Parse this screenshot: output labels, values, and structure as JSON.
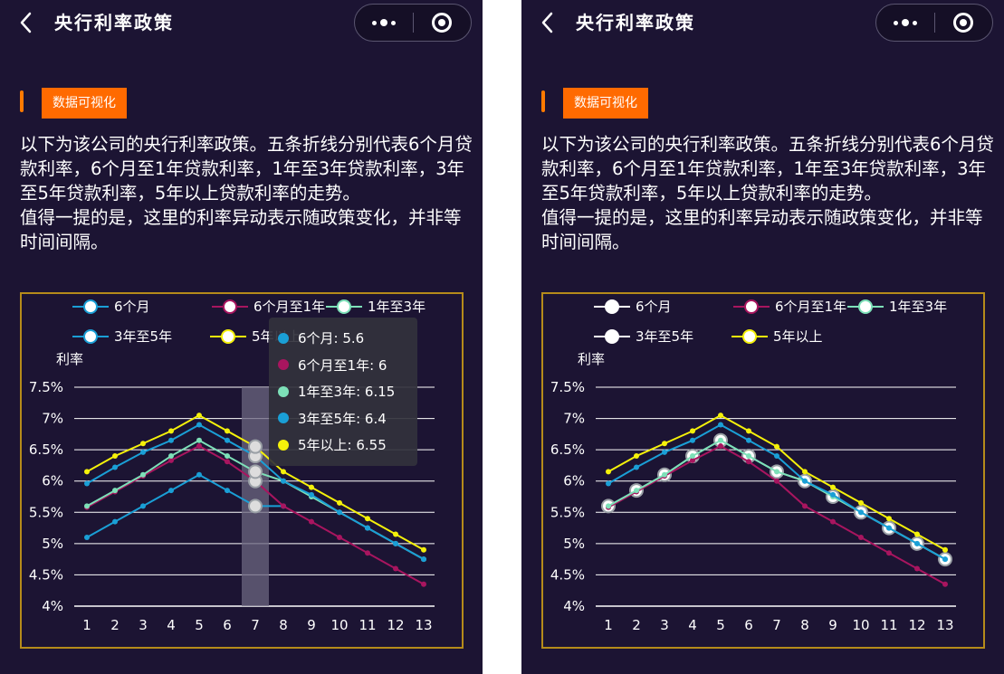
{
  "nav": {
    "title": "央行利率政策"
  },
  "tag_label": "数据可视化",
  "description": "以下为该公司的央行利率政策。五条折线分别代表6个月贷款利率，6个月至1年贷款利率，1年至3年贷款利率，3年至5年贷款利率，5年以上贷款利率的走势。\n值得一提的是，这里的利率异动表示随政策变化，并非等时间间隔。",
  "colors": {
    "background": "#1c1433",
    "accent": "#ff6a00",
    "chart_border": "#b58b1a",
    "tooltip_bg": "#32323c",
    "highlight_band": "#6b6680"
  },
  "icons": {
    "back": "chevron-left-icon",
    "more": "more-dots-icon",
    "close": "target-circle-icon"
  },
  "chart_data": {
    "type": "line",
    "ylabel": "利率",
    "xlabel": "",
    "categories": [
      "1",
      "2",
      "3",
      "4",
      "5",
      "6",
      "7",
      "8",
      "9",
      "10",
      "11",
      "12",
      "13"
    ],
    "y_ticks": [
      "4%",
      "4.5%",
      "5%",
      "5.5%",
      "6%",
      "6.5%",
      "7%",
      "7.5%"
    ],
    "ylim": [
      4,
      7.5
    ],
    "grid": true,
    "legend_position": "top",
    "series": [
      {
        "name": "6个月",
        "color": "#1a9fd6",
        "values": [
          5.1,
          5.35,
          5.6,
          5.85,
          6.1,
          5.85,
          5.6,
          5.6,
          null,
          null,
          null,
          null,
          null
        ]
      },
      {
        "name": "6个月至1年",
        "color": "#a8155f",
        "values": [
          5.58,
          5.83,
          6.08,
          6.33,
          6.56,
          6.31,
          6.0,
          5.6,
          5.35,
          5.1,
          4.85,
          4.6,
          4.35
        ]
      },
      {
        "name": "1年至3年",
        "color": "#7de0b8",
        "values": [
          5.6,
          5.85,
          6.1,
          6.4,
          6.65,
          6.4,
          6.15,
          6.0,
          5.75,
          5.5,
          5.25,
          5.0,
          4.75
        ]
      },
      {
        "name": "3年至5年",
        "color": "#1a9fd6",
        "values": [
          5.96,
          6.22,
          6.46,
          6.65,
          6.9,
          6.65,
          6.4,
          6.0,
          5.78,
          5.5,
          5.25,
          5.0,
          4.75
        ]
      },
      {
        "name": "5年以上",
        "color": "#f5f10a",
        "values": [
          6.15,
          6.4,
          6.6,
          6.8,
          7.05,
          6.8,
          6.55,
          6.15,
          5.9,
          5.65,
          5.4,
          5.15,
          4.9
        ]
      }
    ]
  },
  "tooltip": {
    "index": 7,
    "rows": [
      {
        "label": "6个月: 5.6",
        "color": "#1a9fd6"
      },
      {
        "label": "6个月至1年: 6",
        "color": "#a8155f"
      },
      {
        "label": "1年至3年: 6.15",
        "color": "#7de0b8"
      },
      {
        "label": "3年至5年: 6.4",
        "color": "#1a9fd6"
      },
      {
        "label": "5年以上: 6.55",
        "color": "#f5f10a"
      }
    ]
  },
  "right_chart": {
    "legend_hollow_white": true,
    "overrides": {
      "6个月": [
        5.6,
        5.85,
        6.1,
        6.4,
        6.65,
        6.4,
        6.15,
        6.0,
        5.75,
        5.5,
        5.25,
        5.0,
        4.75
      ]
    }
  }
}
